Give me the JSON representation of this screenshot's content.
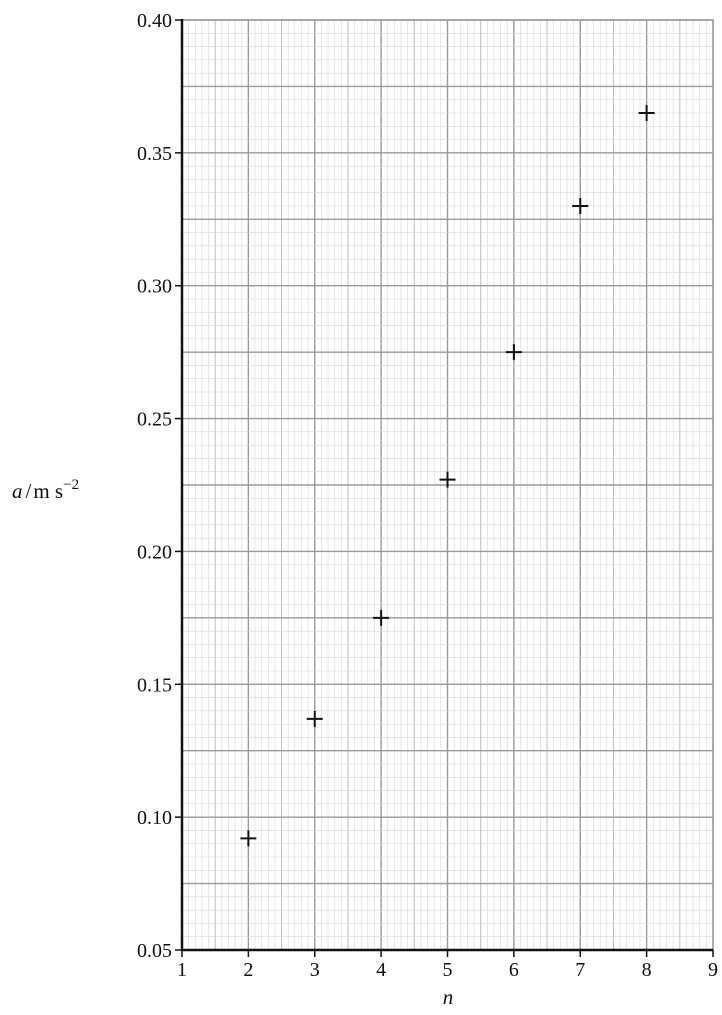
{
  "chart_data": {
    "type": "scatter",
    "title": "",
    "xlabel": "n",
    "ylabel_parts": {
      "symbol": "a",
      "unit": "m s",
      "exponent": "−2"
    },
    "xlim": [
      1,
      9
    ],
    "ylim": [
      0.05,
      0.4
    ],
    "grid": true,
    "marker": "plus",
    "x_ticks": [
      "1",
      "2",
      "3",
      "4",
      "5",
      "6",
      "7",
      "8",
      "9"
    ],
    "y_ticks": [
      "0.05",
      "0.10",
      "0.15",
      "0.20",
      "0.25",
      "0.30",
      "0.35",
      "0.40"
    ],
    "points": [
      {
        "x": 2,
        "y": 0.092
      },
      {
        "x": 3,
        "y": 0.137
      },
      {
        "x": 4,
        "y": 0.175
      },
      {
        "x": 5,
        "y": 0.227
      },
      {
        "x": 6,
        "y": 0.275
      },
      {
        "x": 7,
        "y": 0.33
      },
      {
        "x": 8,
        "y": 0.365
      }
    ]
  },
  "colors": {
    "grid_minor": "#d6d6d6",
    "grid_mid": "#bdbdbd",
    "grid_major": "#9a9a9a",
    "axis": "#111111",
    "marker": "#111111"
  }
}
